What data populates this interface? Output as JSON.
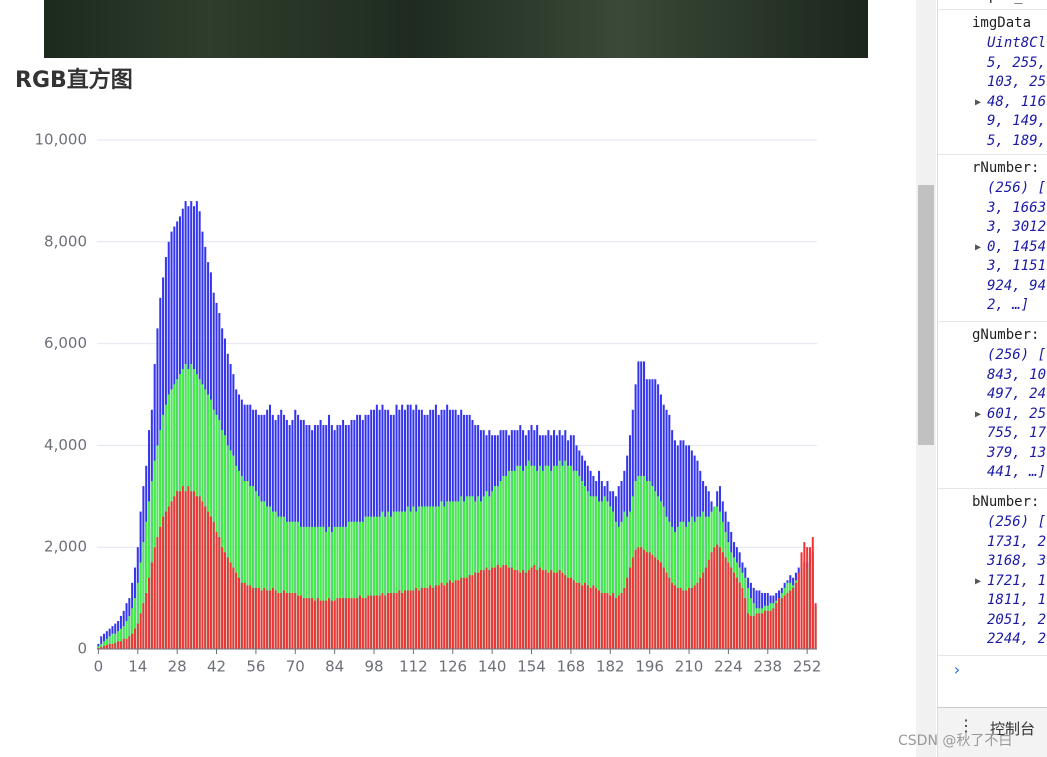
{
  "title": "RGB直方图",
  "chart_data": {
    "type": "bar",
    "overlap": true,
    "x": [
      0,
      1,
      2,
      3,
      4,
      5,
      6,
      7,
      8,
      9,
      10,
      11,
      12,
      13,
      14,
      15,
      16,
      17,
      18,
      19,
      20,
      21,
      22,
      23,
      24,
      25,
      26,
      27,
      28,
      29,
      30,
      31,
      32,
      33,
      34,
      35,
      36,
      37,
      38,
      39,
      40,
      41,
      42,
      43,
      44,
      45,
      46,
      47,
      48,
      49,
      50,
      51,
      52,
      53,
      54,
      55,
      56,
      57,
      58,
      59,
      60,
      61,
      62,
      63,
      64,
      65,
      66,
      67,
      68,
      69,
      70,
      71,
      72,
      73,
      74,
      75,
      76,
      77,
      78,
      79,
      80,
      81,
      82,
      83,
      84,
      85,
      86,
      87,
      88,
      89,
      90,
      91,
      92,
      93,
      94,
      95,
      96,
      97,
      98,
      99,
      100,
      101,
      102,
      103,
      104,
      105,
      106,
      107,
      108,
      109,
      110,
      111,
      112,
      113,
      114,
      115,
      116,
      117,
      118,
      119,
      120,
      121,
      122,
      123,
      124,
      125,
      126,
      127,
      128,
      129,
      130,
      131,
      132,
      133,
      134,
      135,
      136,
      137,
      138,
      139,
      140,
      141,
      142,
      143,
      144,
      145,
      146,
      147,
      148,
      149,
      150,
      151,
      152,
      153,
      154,
      155,
      156,
      157,
      158,
      159,
      160,
      161,
      162,
      163,
      164,
      165,
      166,
      167,
      168,
      169,
      170,
      171,
      172,
      173,
      174,
      175,
      176,
      177,
      178,
      179,
      180,
      181,
      182,
      183,
      184,
      185,
      186,
      187,
      188,
      189,
      190,
      191,
      192,
      193,
      194,
      195,
      196,
      197,
      198,
      199,
      200,
      201,
      202,
      203,
      204,
      205,
      206,
      207,
      208,
      209,
      210,
      211,
      212,
      213,
      214,
      215,
      216,
      217,
      218,
      219,
      220,
      221,
      222,
      223,
      224,
      225,
      226,
      227,
      228,
      229,
      230,
      231,
      232,
      233,
      234,
      235,
      236,
      237,
      238,
      239,
      240,
      241,
      242,
      243,
      244,
      245,
      246,
      247,
      248,
      249,
      250,
      251,
      252,
      253,
      254,
      255
    ],
    "xlim": [
      -0.5,
      255.5
    ],
    "xticks": [
      0,
      14,
      28,
      42,
      56,
      70,
      84,
      98,
      112,
      126,
      140,
      154,
      168,
      182,
      196,
      210,
      224,
      238,
      252
    ],
    "ylim": [
      0,
      10000
    ],
    "yticks": [
      0,
      {
        "value": 2000,
        "label": "2,000"
      },
      {
        "value": 4000,
        "label": "4,000"
      },
      {
        "value": 6000,
        "label": "6,000"
      },
      {
        "value": 8000,
        "label": "8,000"
      },
      {
        "value": 10000,
        "label": "10,000"
      }
    ],
    "grid": true,
    "series": [
      {
        "color": "#3535ee",
        "values": [
          100,
          250,
          300,
          350,
          400,
          450,
          500,
          550,
          650,
          750,
          900,
          1000,
          1300,
          1600,
          2000,
          2700,
          3200,
          3600,
          4300,
          4700,
          5600,
          6300,
          6900,
          7300,
          7700,
          8000,
          8200,
          8300,
          8400,
          8500,
          8650,
          8800,
          8700,
          8800,
          8700,
          8800,
          8600,
          8200,
          7900,
          7600,
          7400,
          7000,
          6800,
          6600,
          6300,
          6100,
          5800,
          5600,
          5400,
          5100,
          5000,
          4900,
          4800,
          4800,
          4800,
          4700,
          4700,
          4600,
          4600,
          4600,
          4700,
          4800,
          4600,
          4500,
          4600,
          4700,
          4600,
          4500,
          4400,
          4500,
          4700,
          4600,
          4500,
          4500,
          4400,
          4400,
          4300,
          4400,
          4400,
          4500,
          4400,
          4400,
          4600,
          4400,
          4300,
          4400,
          4400,
          4500,
          4400,
          4400,
          4500,
          4500,
          4600,
          4600,
          4500,
          4600,
          4600,
          4700,
          4700,
          4800,
          4700,
          4800,
          4700,
          4700,
          4600,
          4600,
          4800,
          4700,
          4800,
          4700,
          4800,
          4800,
          4700,
          4800,
          4700,
          4700,
          4600,
          4600,
          4700,
          4700,
          4800,
          4600,
          4700,
          4700,
          4800,
          4700,
          4700,
          4700,
          4600,
          4700,
          4600,
          4600,
          4600,
          4500,
          4400,
          4400,
          4300,
          4300,
          4200,
          4300,
          4200,
          4200,
          4200,
          4300,
          4300,
          4300,
          4200,
          4300,
          4300,
          4300,
          4400,
          4300,
          4200,
          4300,
          4400,
          4300,
          4400,
          4200,
          4200,
          4200,
          4300,
          4200,
          4300,
          4200,
          4300,
          4200,
          4300,
          4100,
          4200,
          4200,
          4000,
          3900,
          3800,
          3700,
          3600,
          3500,
          3400,
          3300,
          3500,
          3300,
          3200,
          3300,
          3100,
          3100,
          3000,
          3200,
          3300,
          3500,
          3800,
          4200,
          4700,
          5200,
          5650,
          5650,
          5650,
          5300,
          5300,
          5300,
          5300,
          5200,
          5000,
          4800,
          4700,
          4600,
          4300,
          4100,
          4000,
          4100,
          4100,
          4000,
          4000,
          3900,
          3800,
          3700,
          3500,
          3300,
          3200,
          3100,
          2900,
          2800,
          3100,
          3200,
          2900,
          2700,
          2500,
          2300,
          2100,
          2000,
          1900,
          1700,
          1600,
          1400,
          1300,
          1200,
          1150,
          1150,
          1100,
          1100,
          1100,
          1050,
          1050,
          1100,
          1150,
          1200,
          1300,
          1350,
          1450,
          1400,
          1500,
          1600,
          1600,
          1700,
          1700,
          1800,
          1900,
          850
        ]
      },
      {
        "color": "#45ee45",
        "values": [
          50,
          100,
          150,
          200,
          250,
          300,
          300,
          350,
          400,
          450,
          550,
          650,
          800,
          1000,
          1300,
          1700,
          2100,
          2500,
          2900,
          3300,
          3700,
          4000,
          4300,
          4600,
          4800,
          5000,
          5100,
          5200,
          5300,
          5400,
          5500,
          5600,
          5500,
          5600,
          5500,
          5400,
          5300,
          5200,
          5100,
          5000,
          4900,
          4700,
          4600,
          4500,
          4300,
          4200,
          4000,
          3900,
          3800,
          3600,
          3500,
          3400,
          3300,
          3300,
          3200,
          3200,
          3100,
          3000,
          2900,
          2900,
          2800,
          2800,
          2700,
          2700,
          2600,
          2600,
          2600,
          2500,
          2500,
          2500,
          2500,
          2500,
          2400,
          2400,
          2400,
          2400,
          2400,
          2400,
          2400,
          2400,
          2400,
          2300,
          2400,
          2300,
          2400,
          2400,
          2400,
          2400,
          2400,
          2500,
          2500,
          2500,
          2500,
          2500,
          2500,
          2600,
          2600,
          2600,
          2600,
          2600,
          2600,
          2700,
          2600,
          2700,
          2600,
          2700,
          2700,
          2700,
          2700,
          2700,
          2800,
          2700,
          2800,
          2700,
          2800,
          2800,
          2800,
          2800,
          2800,
          2800,
          2800,
          2800,
          2900,
          2800,
          2900,
          2900,
          2900,
          2900,
          2900,
          3000,
          2900,
          3000,
          3000,
          3000,
          2900,
          3000,
          2900,
          3000,
          3100,
          3000,
          3100,
          3200,
          3200,
          3300,
          3400,
          3400,
          3500,
          3500,
          3500,
          3600,
          3600,
          3500,
          3600,
          3700,
          3600,
          3600,
          3500,
          3600,
          3500,
          3600,
          3600,
          3500,
          3600,
          3600,
          3700,
          3600,
          3700,
          3600,
          3600,
          3500,
          3500,
          3400,
          3300,
          3200,
          3100,
          3000,
          3000,
          3000,
          2900,
          2900,
          3000,
          2900,
          2800,
          2700,
          2500,
          2400,
          2500,
          2700,
          2600,
          2700,
          3000,
          3300,
          3400,
          3400,
          3400,
          3300,
          3300,
          3200,
          3100,
          3000,
          2900,
          2800,
          2600,
          2500,
          2400,
          2300,
          2400,
          2500,
          2500,
          2400,
          2500,
          2600,
          2500,
          2600,
          2600,
          2700,
          2600,
          2600,
          2700,
          2800,
          2800,
          2700,
          2500,
          2300,
          2100,
          1900,
          1800,
          1700,
          1600,
          1500,
          1400,
          1200,
          1000,
          900,
          800,
          800,
          800,
          850,
          850,
          900,
          900,
          950,
          1000,
          1100,
          1200,
          1300,
          1300,
          1250,
          1350,
          1400,
          1500,
          1600,
          1600,
          1700,
          1800,
          800
        ]
      },
      {
        "color": "#ee3535",
        "values": [
          20,
          40,
          60,
          80,
          100,
          100,
          120,
          150,
          150,
          200,
          200,
          250,
          300,
          400,
          500,
          700,
          900,
          1100,
          1400,
          1700,
          2000,
          2200,
          2400,
          2600,
          2700,
          2800,
          2900,
          3000,
          3100,
          3100,
          3200,
          3100,
          3200,
          3100,
          3100,
          3000,
          3000,
          2900,
          2800,
          2700,
          2600,
          2500,
          2300,
          2200,
          2000,
          1900,
          1800,
          1700,
          1600,
          1500,
          1400,
          1300,
          1300,
          1250,
          1250,
          1200,
          1200,
          1200,
          1150,
          1200,
          1150,
          1150,
          1200,
          1150,
          1100,
          1100,
          1150,
          1100,
          1100,
          1100,
          1100,
          1050,
          1050,
          1000,
          1000,
          1000,
          1000,
          950,
          1000,
          950,
          950,
          950,
          1000,
          950,
          950,
          1000,
          1000,
          1000,
          1000,
          1000,
          1000,
          1000,
          1000,
          1050,
          1000,
          1000,
          1050,
          1050,
          1050,
          1050,
          1050,
          1100,
          1050,
          1100,
          1100,
          1100,
          1100,
          1150,
          1100,
          1150,
          1150,
          1150,
          1150,
          1200,
          1150,
          1200,
          1200,
          1200,
          1250,
          1200,
          1250,
          1250,
          1300,
          1250,
          1300,
          1350,
          1300,
          1350,
          1350,
          1400,
          1400,
          1400,
          1450,
          1450,
          1500,
          1500,
          1550,
          1550,
          1600,
          1550,
          1600,
          1600,
          1650,
          1600,
          1650,
          1650,
          1600,
          1600,
          1550,
          1550,
          1500,
          1550,
          1500,
          1550,
          1600,
          1650,
          1550,
          1600,
          1550,
          1550,
          1500,
          1550,
          1500,
          1500,
          1550,
          1500,
          1450,
          1400,
          1400,
          1350,
          1300,
          1300,
          1250,
          1300,
          1250,
          1200,
          1250,
          1200,
          1150,
          1100,
          1100,
          1100,
          1050,
          1100,
          1000,
          1050,
          1100,
          1200,
          1400,
          1600,
          1800,
          1950,
          2000,
          2000,
          1950,
          1900,
          1900,
          1850,
          1800,
          1750,
          1700,
          1600,
          1500,
          1400,
          1300,
          1250,
          1200,
          1200,
          1150,
          1150,
          1200,
          1200,
          1250,
          1300,
          1400,
          1500,
          1600,
          1750,
          1900,
          2000,
          2050,
          2000,
          1900,
          1800,
          1700,
          1600,
          1500,
          1400,
          1300,
          1200,
          1000,
          700,
          650,
          650,
          700,
          700,
          700,
          750,
          750,
          750,
          800,
          900,
          1000,
          1000,
          1050,
          1100,
          1150,
          1200,
          1300,
          1500,
          1900,
          2100,
          2000,
          2000,
          2200,
          900
        ]
      }
    ]
  },
  "devtools": {
    "top": "super_co",
    "entries": [
      {
        "name": "imgData",
        "lines": [
          "Uint8Cl",
          "5, 255,",
          "103, 25",
          "48, 116",
          "9, 149,",
          "5, 189,"
        ]
      },
      {
        "name": "rNumber:",
        "lines": [
          "(256) [",
          "3, 1663",
          "3, 3012",
          "0, 1454",
          "3, 1151",
          "924, 94",
          "2, …]"
        ]
      },
      {
        "name": "gNumber:",
        "lines": [
          "(256) [",
          "843, 10",
          "497, 24",
          "601, 25",
          "755, 17",
          "379, 13",
          "441, …]"
        ]
      },
      {
        "name": "bNumber:",
        "lines": [
          "(256) [",
          "1731, 2",
          "3168, 3",
          "1721, 1",
          "1811, 1",
          "2051, 2",
          "2244, 2"
        ]
      }
    ],
    "console_tab": "控制台"
  },
  "watermark": "CSDN @秋了不白"
}
